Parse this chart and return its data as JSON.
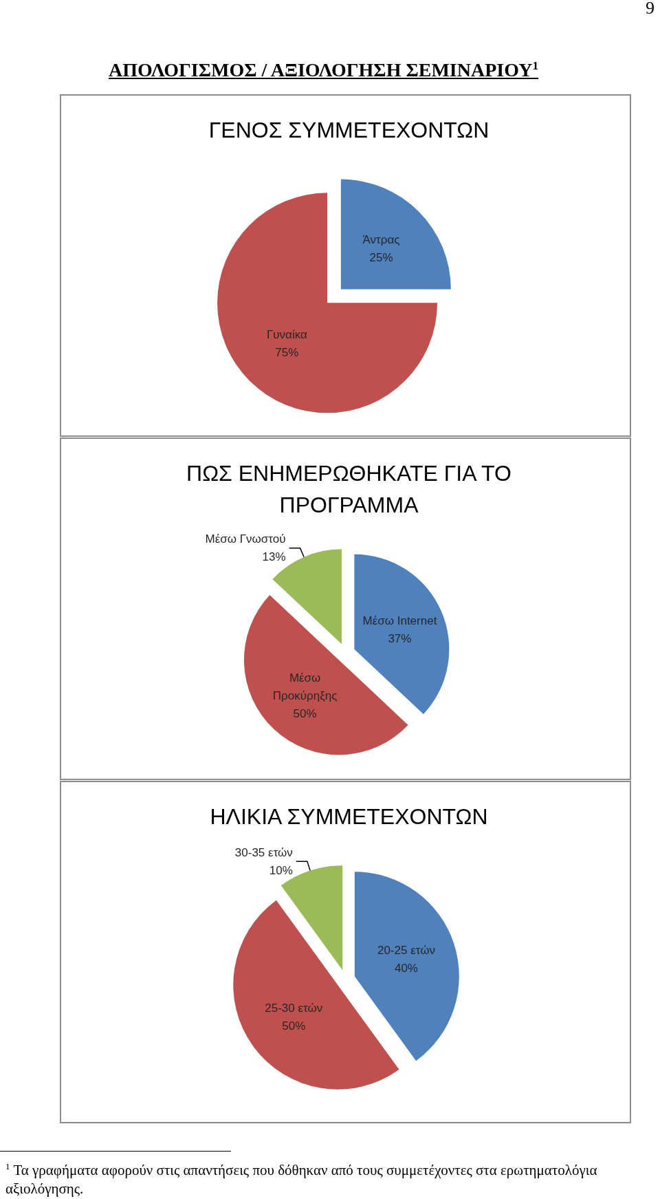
{
  "chart_data": [
    {
      "type": "pie",
      "title": "ΓΕΝΟΣ ΣΥΜΜΕΤΕΧΟΝΤΩΝ",
      "categories": [
        "Άντρας",
        "Γυναίκα"
      ],
      "values": [
        25,
        75
      ],
      "colors": [
        "#4f81bd",
        "#c0504d"
      ],
      "value_labels": [
        "25%",
        "75%"
      ],
      "annotations": [
        "9",
        "ΑΠΟΛΟΓΙΣΜΟΣ / ΑΞΙΟΛΟΓΗΣΗ ΣΕΜΙΝΑΡΙΟΥ$^{1}$"
      ]
    },
    {
      "type": "pie",
      "title": "ΠΩΣ ΕΝΗΜΕΡΩΘΗΚΑΤΕ ΓΙΑ ΤΟ ΠΡΟΓΡΑΜΜΑ",
      "categories": [
        "Μέσω Internet",
        "Μέσω Προκύρηξης",
        "Μέσω Γνωστού"
      ],
      "values": [
        37,
        50,
        13
      ],
      "colors": [
        "#4f81bd",
        "#c0504d",
        "#9bbb59"
      ],
      "value_labels": [
        "37%",
        "50%",
        "13%"
      ]
    },
    {
      "type": "pie",
      "title": "ΗΛΙΚΙΑ ΣΥΜΜΕΤΕΧΟΝΤΩΝ",
      "categories": [
        "20-25 ετών",
        "25-30 ετών",
        "30-35 ετών"
      ],
      "values": [
        40,
        50,
        10
      ],
      "colors": [
        "#4f81bd",
        "#c0504d",
        "#9bbb59"
      ],
      "value_labels": [
        "40%",
        "50%",
        "10%"
      ],
      "annotations": [
        "$^{1}$ Τα γραφήματα αφορούν στις απαντήσεις που δόθηκαν από τους συμμετέχοντες στα ερωτηματολόγια αξιολόγησης."
      ]
    }
  ]
}
